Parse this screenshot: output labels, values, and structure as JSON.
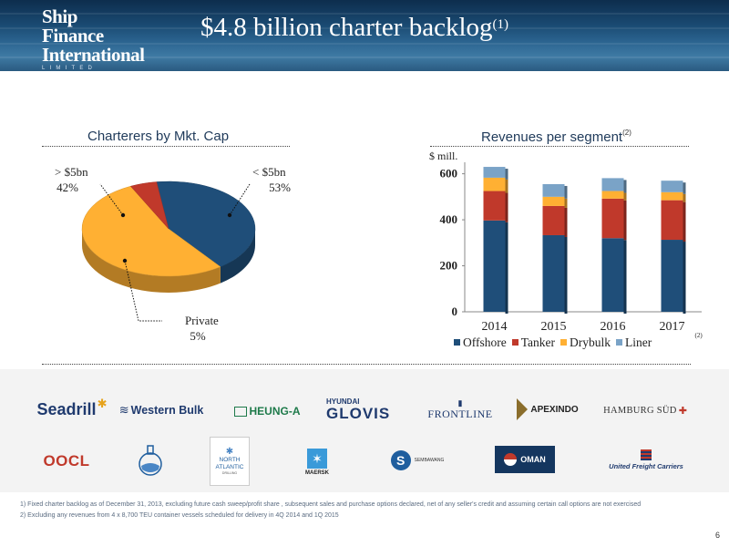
{
  "header": {
    "logo_line1": "Ship Finance",
    "logo_line2": "International",
    "logo_line3": "LIMITED",
    "title": "$4.8 billion charter backlog",
    "title_sup": "(1)"
  },
  "left_section": {
    "title": "Charterers by Mkt. Cap"
  },
  "right_section": {
    "title": "Revenues per segment",
    "title_sup": "(2)",
    "unit": "$ mill."
  },
  "chart_data": [
    {
      "type": "pie",
      "title": "Charterers by Mkt. Cap",
      "slices": [
        {
          "label": "> $5bn",
          "value": 42,
          "display": "42%",
          "color": "#1f4e79"
        },
        {
          "label": "< $5bn",
          "value": 53,
          "display": "53%",
          "color": "#ffb033"
        },
        {
          "label": "Private",
          "value": 5,
          "display": "5%",
          "color": "#c0392b"
        }
      ]
    },
    {
      "type": "bar",
      "stacked": true,
      "title": "Revenues per segment",
      "ylabel": "$ mill.",
      "categories": [
        "2014",
        "2015",
        "2016",
        "2017"
      ],
      "ylim": [
        0,
        650
      ],
      "yticks": [
        "0",
        "200",
        "400",
        "600"
      ],
      "series": [
        {
          "name": "Offshore",
          "values": [
            397,
            333,
            320,
            313
          ],
          "color": "#1f4e79"
        },
        {
          "name": "Tanker",
          "values": [
            128,
            127,
            172,
            172
          ],
          "color": "#c0392b"
        },
        {
          "name": "Drybulk",
          "values": [
            58,
            40,
            33,
            35
          ],
          "color": "#ffb033"
        },
        {
          "name": "Liner",
          "values": [
            47,
            55,
            56,
            50
          ],
          "color": "#7aa3c7"
        }
      ],
      "category_note": {
        "category": "2017",
        "text": "(2)"
      },
      "legend": "bottom"
    }
  ],
  "logos": [
    {
      "text": "Seadrill"
    },
    {
      "text": "Western Bulk"
    },
    {
      "text": "HEUNG-A"
    },
    {
      "text_top": "HYUNDAI",
      "text": "GLOVIS"
    },
    {
      "text": "FRONTLINE"
    },
    {
      "text": "APEXINDO"
    },
    {
      "text": "HAMBURG SÜD"
    },
    {
      "text": "OOCL"
    },
    {
      "text": ""
    },
    {
      "text_top": "NORTH",
      "text": "ATLANTIC",
      "text_bottom": "DRILLING"
    },
    {
      "text": "MAERSK"
    },
    {
      "text": "SEMBAWANG"
    },
    {
      "text": "OMAN"
    },
    {
      "text": "United Freight Carriers"
    }
  ],
  "footnotes": [
    "1)  Fixed charter backlog as of December 31, 2013, excluding future cash sweep/profit share , subsequent sales and purchase options declared, net of any seller's credit and assuming certain call options are not exercised",
    "2)  Excluding any revenues from 4 x 8,700 TEU container vessels scheduled for delivery in 4Q 2014 and 1Q 2015"
  ],
  "page_number": "6"
}
